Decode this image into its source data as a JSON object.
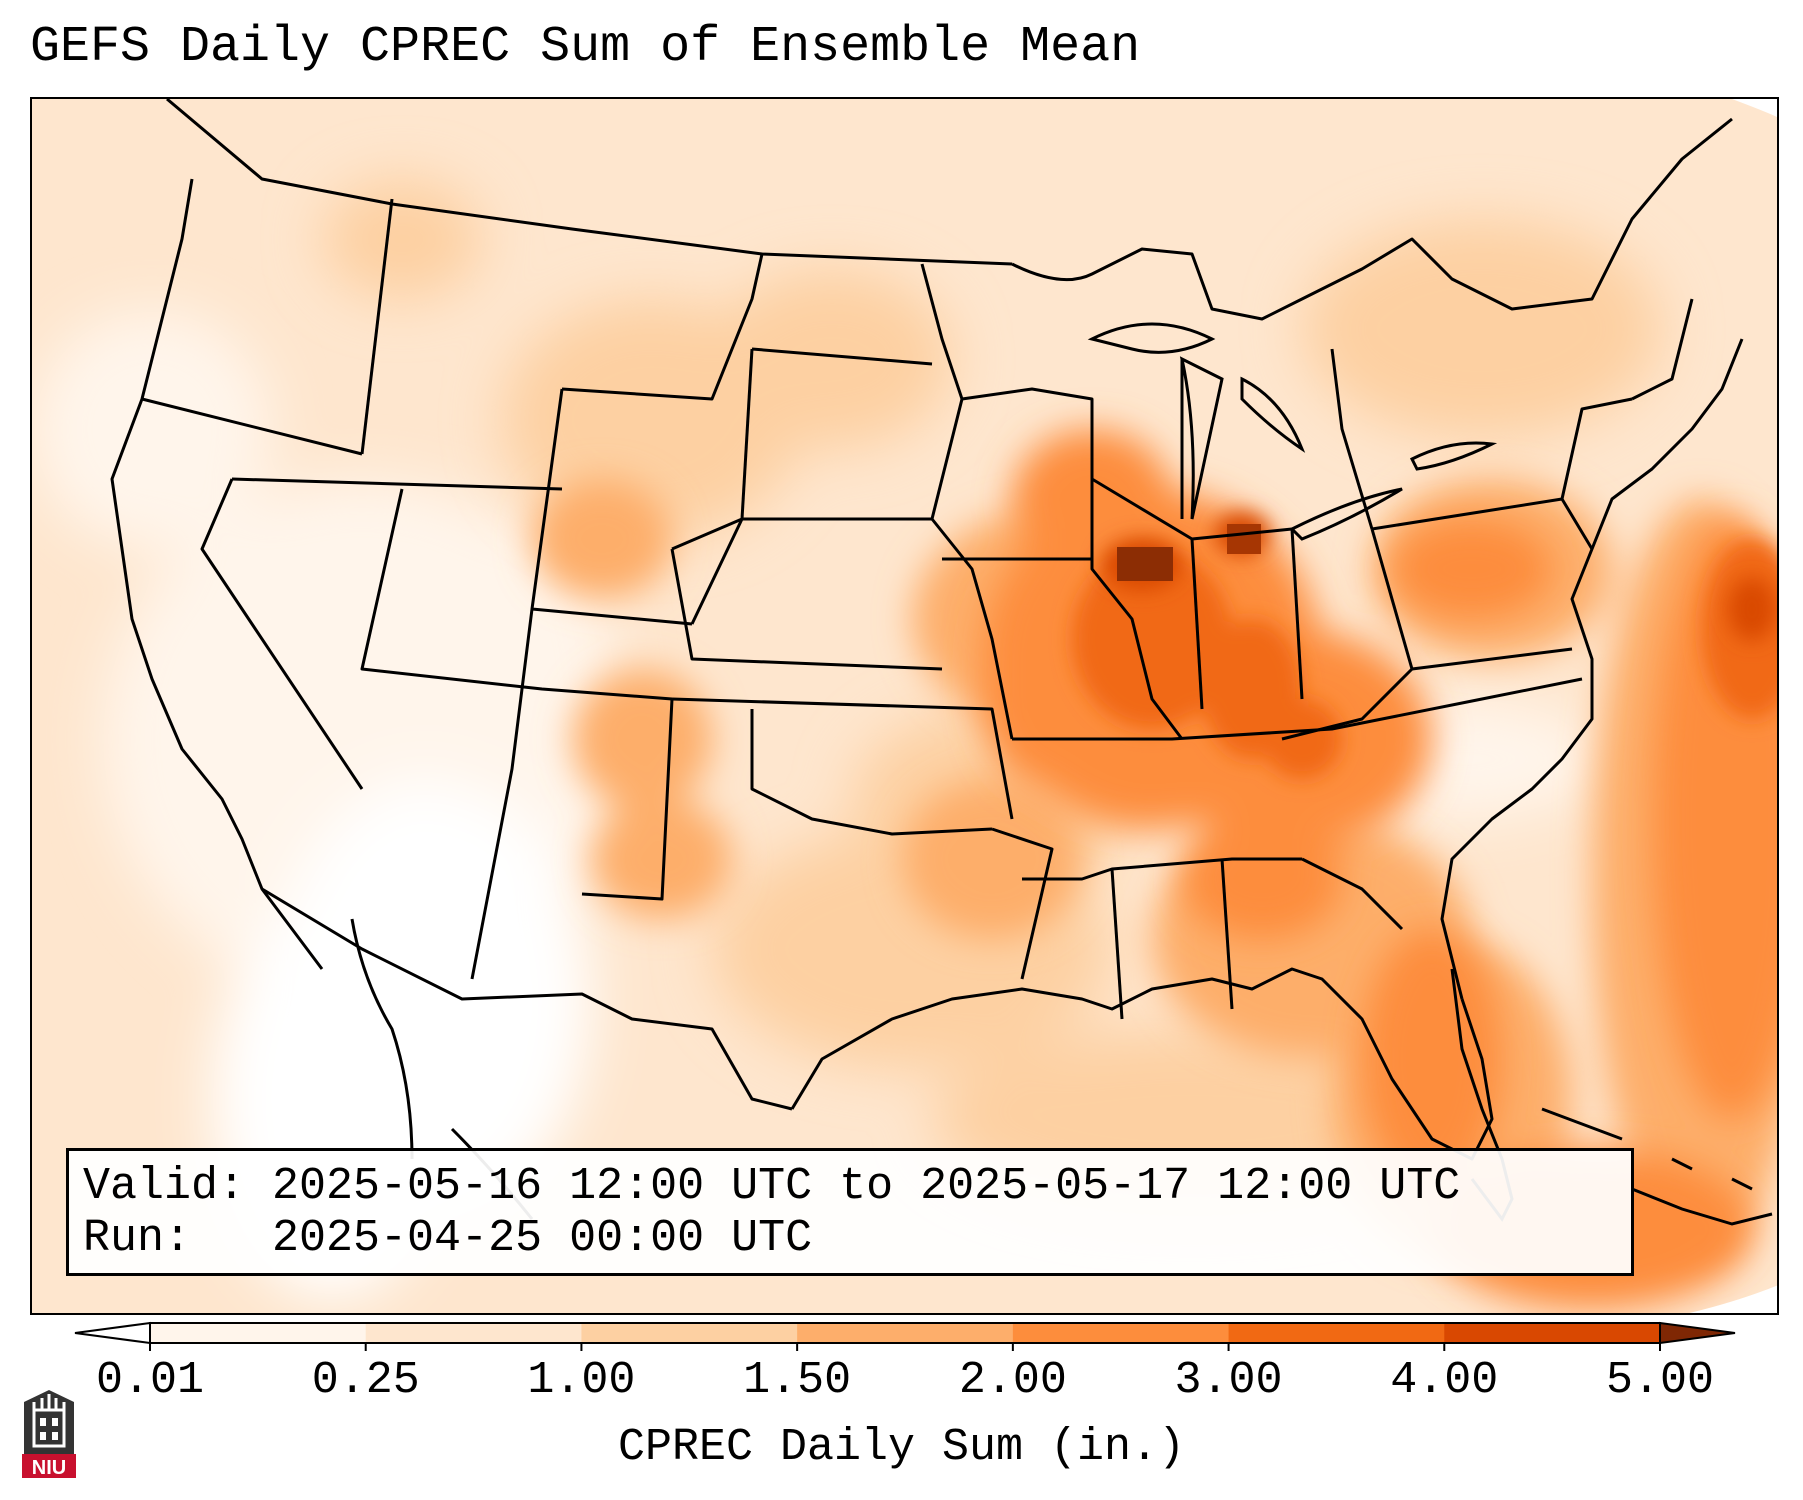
{
  "title": "GEFS Daily CPREC Sum of Ensemble Mean",
  "info": {
    "valid_line": "Valid: 2025-05-16 12:00 UTC to 2025-05-17 12:00 UTC",
    "run_line": "Run:   2025-04-25 00:00 UTC"
  },
  "colorbar": {
    "label": "CPREC Daily Sum (in.)",
    "ticks": [
      "0.01",
      "0.25",
      "1.00",
      "1.50",
      "2.00",
      "3.00",
      "4.00",
      "5.00"
    ],
    "bin_colors": [
      "#fff5eb",
      "#fee6ce",
      "#fdd0a2",
      "#fdae6b",
      "#fd8d3c",
      "#f16913",
      "#d94801",
      "#8c2d04"
    ],
    "under_color": "#ffffff",
    "over_color": "#7f2704"
  },
  "logo": {
    "text": "NIU",
    "colors": {
      "shield": "#333333",
      "banner": "#c8102e"
    }
  },
  "map": {
    "variable": "Convective precipitation daily sum, ensemble mean",
    "region": "Contiguous United States",
    "precip_areas": [
      {
        "area": "Southern Wisconsin / northern Illinois",
        "value_in": 3.0
      },
      {
        "area": "Central Illinois",
        "value_in": 4.5
      },
      {
        "area": "Central Indiana",
        "value_in": 4.0
      },
      {
        "area": "Ohio / Kentucky",
        "value_in": 3.0
      },
      {
        "area": "Iowa / Missouri",
        "value_in": 2.0
      },
      {
        "area": "Pennsylvania / New York",
        "value_in": 2.0
      },
      {
        "area": "Tennessee / Alabama / Georgia",
        "value_in": 2.0
      },
      {
        "area": "Florida peninsula",
        "value_in": 2.5
      },
      {
        "area": "Atlantic offshore",
        "value_in": 3.0
      },
      {
        "area": "Colorado / New Mexico high terrain",
        "value_in": 1.6
      },
      {
        "area": "Oklahoma / Texas",
        "value_in": 1.2
      },
      {
        "area": "Northern Plains",
        "value_in": 0.6
      },
      {
        "area": "Great Basin / Southwest",
        "value_in": 0.1
      }
    ]
  }
}
